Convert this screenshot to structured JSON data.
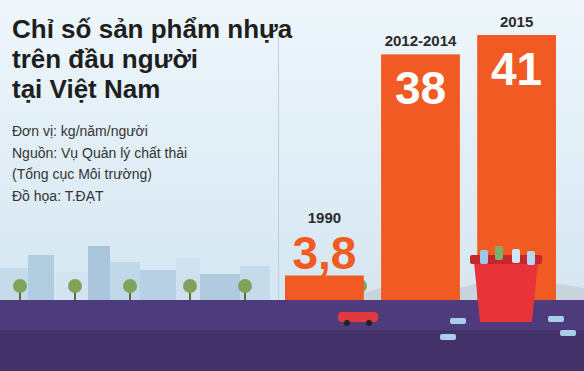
{
  "chart_data": {
    "type": "bar",
    "title": "Chỉ số sản phẩm nhựa\ntrên đầu người\ntại Việt Nam",
    "annotations": [
      "Đơn vị: kg/năm/người",
      "Nguồn: Vụ Quản lý chất thải\n(Tổng cục Môi trường)",
      "Đồ họa: T.ĐẠT"
    ],
    "categories": [
      "1990",
      "2012-2014",
      "2015"
    ],
    "values": [
      3.8,
      38,
      41
    ],
    "value_labels": [
      "3,8",
      "38",
      "41"
    ],
    "color": "#f15a22",
    "ylim": [
      0,
      41
    ],
    "yticks": [
      0,
      41
    ],
    "grid": false,
    "data_labels": true,
    "tick_labels": false
  }
}
